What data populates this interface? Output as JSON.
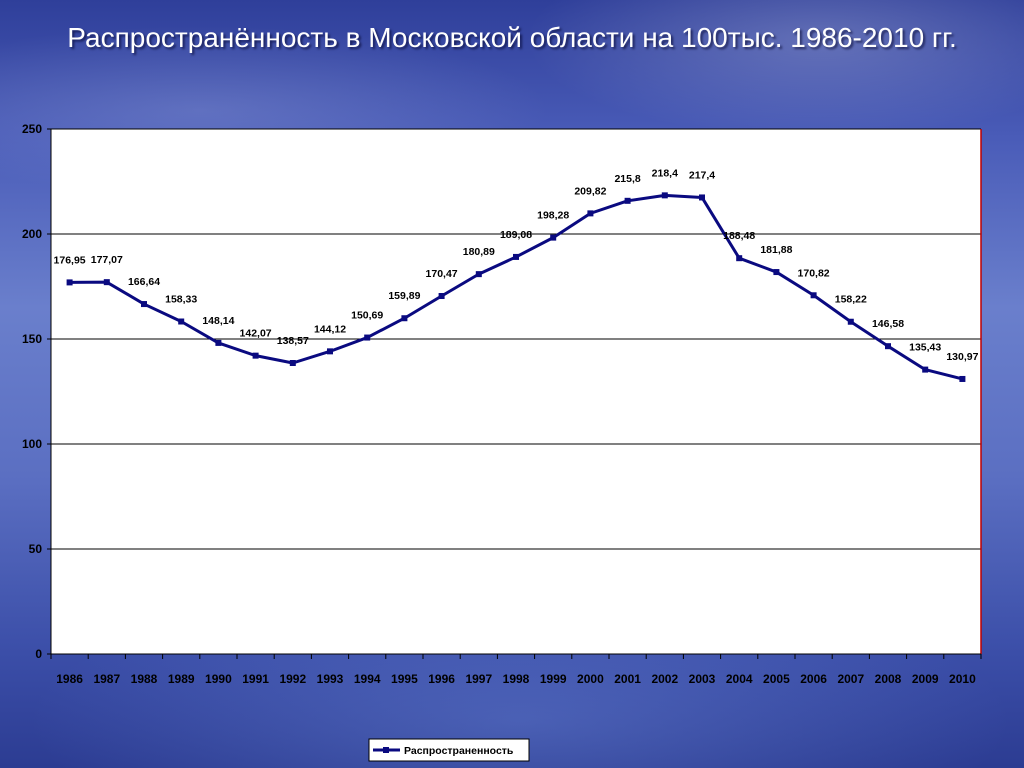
{
  "slide": {
    "title": "Распространённость в Московской области на 100тыс. 1986-2010 гг."
  },
  "colors": {
    "series": "#0a0a80",
    "plot_background": "#ffffff",
    "plot_border_right": "#c00000"
  },
  "chart_data": {
    "type": "line",
    "title": "Распространённость в Московской области на 100тыс. 1986-2010 гг.",
    "xlabel": "",
    "ylabel": "",
    "ylim": [
      0,
      250
    ],
    "yticks": [
      "0",
      "50",
      "100",
      "150",
      "200",
      "250"
    ],
    "grid": true,
    "legend_position": "bottom",
    "categories": [
      "1986",
      "1987",
      "1988",
      "1989",
      "1990",
      "1991",
      "1992",
      "1993",
      "1994",
      "1995",
      "1996",
      "1997",
      "1998",
      "1999",
      "2000",
      "2001",
      "2002",
      "2003",
      "2004",
      "2005",
      "2006",
      "2007",
      "2008",
      "2009",
      "2010"
    ],
    "series": [
      {
        "name": "Распространенность",
        "values": [
          176.95,
          177.07,
          166.64,
          158.33,
          148.14,
          142.07,
          138.57,
          144.12,
          150.69,
          159.89,
          170.47,
          180.89,
          189.08,
          198.28,
          209.82,
          215.8,
          218.4,
          217.4,
          188.48,
          181.88,
          170.82,
          158.22,
          146.58,
          135.43,
          130.97
        ],
        "labels": [
          "176,95",
          "177,07",
          "166,64",
          "158,33",
          "148,14",
          "142,07",
          "138,57",
          "144,12",
          "150,69",
          "159,89",
          "170,47",
          "180,89",
          "189,08",
          "198,28",
          "209,82",
          "215,8",
          "218,4",
          "217,4",
          "188,48",
          "181,88",
          "170,82",
          "158,22",
          "146,58",
          "135,43",
          "130,97"
        ]
      }
    ]
  }
}
